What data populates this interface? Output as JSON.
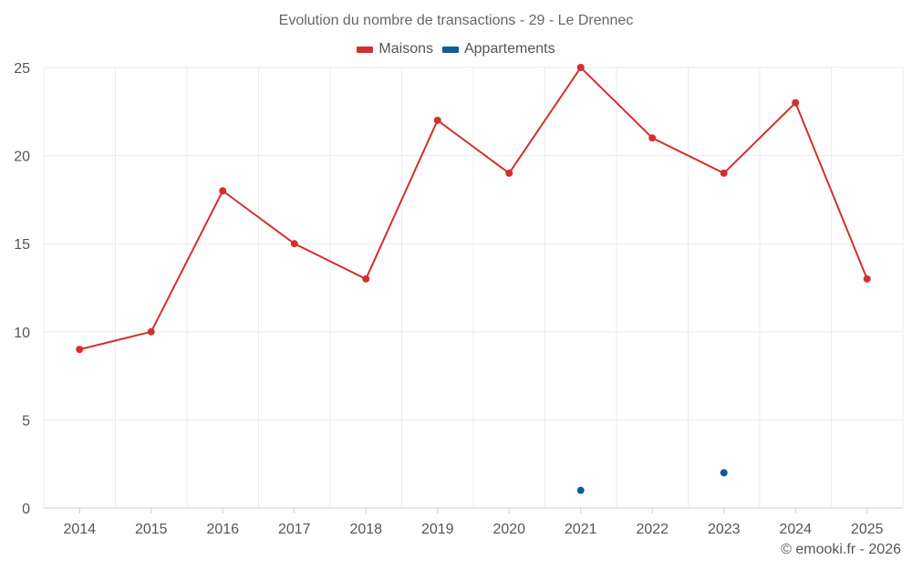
{
  "chart_data": {
    "type": "line",
    "title": "Evolution du nombre de transactions - 29 - Le Drennec",
    "categories": [
      "2014",
      "2015",
      "2016",
      "2017",
      "2018",
      "2019",
      "2020",
      "2021",
      "2022",
      "2023",
      "2024",
      "2025"
    ],
    "series": [
      {
        "name": "Maisons",
        "color": "#d32f2f",
        "values": [
          9,
          10,
          18,
          15,
          13,
          22,
          19,
          25,
          21,
          19,
          23,
          13
        ]
      },
      {
        "name": "Appartements",
        "color": "#0b5e96",
        "values": [
          null,
          null,
          null,
          null,
          null,
          null,
          null,
          1,
          null,
          2,
          null,
          null
        ]
      }
    ],
    "ylim": [
      0,
      25
    ],
    "yticks": [
      0,
      5,
      10,
      15,
      20,
      25
    ],
    "xlabel": "",
    "ylabel": "",
    "grid": true,
    "legend_position": "top-center"
  },
  "footer": {
    "credit": "© emooki.fr - 2026"
  }
}
